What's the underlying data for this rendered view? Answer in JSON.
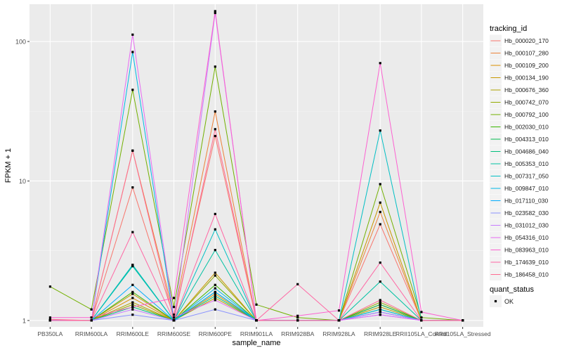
{
  "chart_data": {
    "type": "line",
    "xlabel": "sample_name",
    "ylabel": "FPKM + 1",
    "y_scale": "log10",
    "y_ticks": [
      1,
      10,
      100
    ],
    "y_tick_labels": [
      "1",
      "10",
      "100"
    ],
    "ylim": [
      0.9,
      185
    ],
    "grid": true,
    "legend_placement": "right",
    "categories": [
      "PB350LA",
      "RRIM600LA",
      "RRIM600LE",
      "RRIM600SE",
      "RRIM600PE",
      "RRIM901LA",
      "RRIM928BA",
      "RRIM928LA",
      "RRIM928LE",
      "RRII105LA_Control",
      "RRII105LA_Stressed"
    ],
    "legend": {
      "title": "tracking_id",
      "status_title": "quant_status",
      "status_label": "OK"
    },
    "series": [
      {
        "name": "Hb_000020_170",
        "color": "#F8766D",
        "values": [
          1.0,
          1.0,
          9.0,
          1.05,
          21.0,
          1.0,
          1.0,
          1.0,
          4.9,
          1.0,
          1.0
        ]
      },
      {
        "name": "Hb_000107_280",
        "color": "#EC8239",
        "values": [
          1.0,
          1.0,
          16.5,
          1.1,
          31.5,
          1.0,
          1.0,
          1.0,
          6.0,
          1.0,
          1.0
        ]
      },
      {
        "name": "Hb_000109_200",
        "color": "#DB8E00",
        "values": [
          1.0,
          1.0,
          1.45,
          1.0,
          1.55,
          1.0,
          1.0,
          1.0,
          1.3,
          1.0,
          1.0
        ]
      },
      {
        "name": "Hb_000134_190",
        "color": "#C79800",
        "values": [
          1.0,
          1.0,
          1.55,
          1.0,
          2.2,
          1.0,
          1.0,
          1.0,
          7.0,
          1.0,
          1.0
        ]
      },
      {
        "name": "Hb_000676_360",
        "color": "#AFA100",
        "values": [
          1.0,
          1.0,
          1.35,
          1.0,
          1.45,
          1.0,
          1.0,
          1.0,
          1.25,
          1.0,
          1.0
        ]
      },
      {
        "name": "Hb_000742_070",
        "color": "#93AA00",
        "values": [
          1.0,
          1.0,
          1.3,
          1.0,
          2.1,
          1.0,
          1.0,
          1.0,
          1.35,
          1.0,
          1.0
        ]
      },
      {
        "name": "Hb_000792_100",
        "color": "#72B000",
        "values": [
          1.75,
          1.2,
          45.0,
          1.25,
          66.0,
          1.3,
          1.05,
          1.0,
          9.5,
          1.05,
          1.0
        ]
      },
      {
        "name": "Hb_002030_010",
        "color": "#39B600",
        "values": [
          1.0,
          1.0,
          1.6,
          1.0,
          1.8,
          1.0,
          1.0,
          1.0,
          1.2,
          1.0,
          1.0
        ]
      },
      {
        "name": "Hb_004313_010",
        "color": "#00BB4E",
        "values": [
          1.0,
          1.0,
          2.5,
          1.0,
          1.6,
          1.0,
          1.0,
          1.0,
          1.3,
          1.0,
          1.0
        ]
      },
      {
        "name": "Hb_004686_040",
        "color": "#00BF7D",
        "values": [
          1.0,
          1.0,
          1.25,
          1.0,
          1.5,
          1.0,
          1.0,
          1.0,
          1.15,
          1.0,
          1.0
        ]
      },
      {
        "name": "Hb_005353_010",
        "color": "#00C1A3",
        "values": [
          1.0,
          1.0,
          2.45,
          1.0,
          3.2,
          1.0,
          1.0,
          1.0,
          1.9,
          1.0,
          1.0
        ]
      },
      {
        "name": "Hb_007317_050",
        "color": "#00BFC4",
        "values": [
          1.0,
          1.0,
          2.5,
          1.0,
          4.5,
          1.0,
          1.0,
          1.0,
          23.0,
          1.0,
          1.0
        ]
      },
      {
        "name": "Hb_009847_010",
        "color": "#00B8E5",
        "values": [
          1.0,
          1.0,
          84.0,
          1.0,
          1.7,
          1.0,
          1.0,
          1.0,
          1.2,
          1.0,
          1.0
        ]
      },
      {
        "name": "Hb_017110_030",
        "color": "#00ABFD",
        "values": [
          1.0,
          1.0,
          1.8,
          1.0,
          1.6,
          1.0,
          1.0,
          1.0,
          1.15,
          1.0,
          1.0
        ]
      },
      {
        "name": "Hb_023582_030",
        "color": "#8B93FF",
        "values": [
          1.0,
          1.0,
          1.1,
          1.0,
          1.2,
          1.0,
          1.0,
          1.0,
          1.1,
          1.0,
          1.0
        ]
      },
      {
        "name": "Hb_031012_030",
        "color": "#C77CFF",
        "values": [
          1.0,
          1.0,
          1.2,
          1.0,
          160.0,
          1.0,
          1.0,
          1.0,
          1.15,
          1.0,
          1.0
        ]
      },
      {
        "name": "Hb_054316_010",
        "color": "#E76BF3",
        "values": [
          1.0,
          1.0,
          112.0,
          1.05,
          1.4,
          1.0,
          1.0,
          1.0,
          1.1,
          1.0,
          1.0
        ]
      },
      {
        "name": "Hb_083963_010",
        "color": "#FD61D1",
        "values": [
          1.05,
          1.05,
          1.25,
          1.45,
          165.0,
          1.0,
          1.08,
          1.18,
          70.0,
          1.15,
          1.0
        ]
      },
      {
        "name": "Hb_174639_010",
        "color": "#FF67A4",
        "values": [
          1.0,
          1.0,
          4.3,
          1.0,
          5.8,
          1.0,
          1.82,
          1.0,
          2.6,
          1.0,
          1.0
        ]
      },
      {
        "name": "Hb_186458_010",
        "color": "#FF6C91",
        "values": [
          1.02,
          1.0,
          16.5,
          1.0,
          23.5,
          1.0,
          1.0,
          1.0,
          1.4,
          1.0,
          1.0
        ]
      }
    ]
  }
}
